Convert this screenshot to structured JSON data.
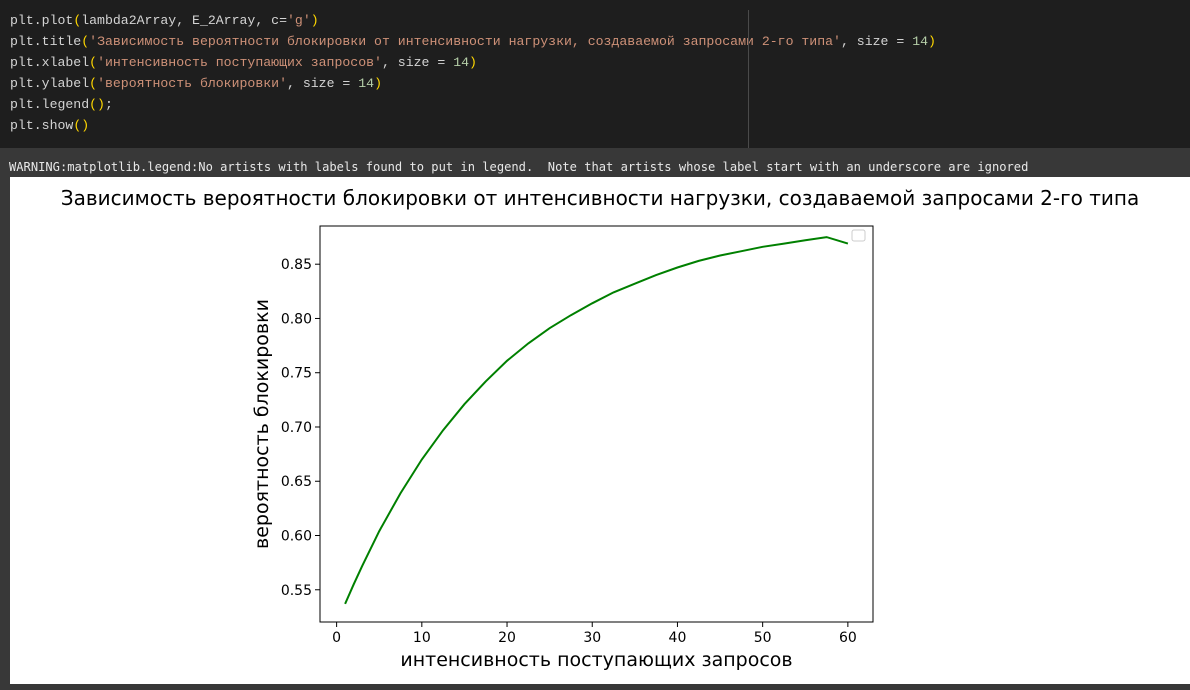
{
  "code_lines": [
    [
      {
        "t": "plt.plot"
      },
      {
        "t": "(",
        "c": "brk"
      },
      {
        "t": "lambda2Array, E_2Array, c="
      },
      {
        "t": "'g'",
        "c": "str"
      },
      {
        "t": ")",
        "c": "brk"
      }
    ],
    [
      {
        "t": "plt.title"
      },
      {
        "t": "(",
        "c": "brk"
      },
      {
        "t": "'Зависимость вероятности блокировки от интенсивности нагрузки, создаваемой запросами 2-го типа'",
        "c": "str"
      },
      {
        "t": ", size = "
      },
      {
        "t": "14",
        "c": "num"
      },
      {
        "t": ")",
        "c": "brk"
      }
    ],
    [
      {
        "t": "plt.xlabel"
      },
      {
        "t": "(",
        "c": "brk"
      },
      {
        "t": "'интенсивность поступающих запросов'",
        "c": "str"
      },
      {
        "t": ", size = "
      },
      {
        "t": "14",
        "c": "num"
      },
      {
        "t": ")",
        "c": "brk"
      }
    ],
    [
      {
        "t": "plt.ylabel"
      },
      {
        "t": "(",
        "c": "brk"
      },
      {
        "t": "'вероятность блокировки'",
        "c": "str"
      },
      {
        "t": ", size = "
      },
      {
        "t": "14",
        "c": "num"
      },
      {
        "t": ")",
        "c": "brk"
      }
    ],
    [
      {
        "t": "plt.legend"
      },
      {
        "t": "()",
        "c": "brk"
      },
      {
        "t": ";"
      }
    ],
    [
      {
        "t": "plt.show"
      },
      {
        "t": "()",
        "c": "brk"
      }
    ]
  ],
  "colors": {
    "code_default": "#d4d4d4",
    "code_string": "#ce9178",
    "code_number": "#b5cea8",
    "code_bracket": "#ffd700",
    "line_series": "#008000"
  },
  "warning_text": "WARNING:matplotlib.legend:No artists with labels found to put in legend.  Note that artists whose label start with an underscore are ignored",
  "chart_data": {
    "type": "line",
    "title": "Зависимость вероятности блокировки от интенсивности нагрузки, создаваемой запросами 2-го типа",
    "xlabel": "интенсивность поступающих запросов",
    "ylabel": "вероятность блокировки",
    "xlim": [
      -1.95,
      62.95
    ],
    "ylim": [
      0.5203,
      0.8852
    ],
    "xticks": [
      0,
      10,
      20,
      30,
      40,
      50,
      60
    ],
    "yticks": [
      0.55,
      0.6,
      0.65,
      0.7,
      0.75,
      0.8,
      0.85
    ],
    "ytick_labels": [
      "0.55",
      "0.60",
      "0.65",
      "0.70",
      "0.75",
      "0.80",
      "0.85"
    ],
    "grid": false,
    "legend": "top-right, empty",
    "series": [
      {
        "color": "#008000",
        "x": [
          1,
          2,
          3,
          5,
          7.5,
          10,
          12.5,
          15,
          17.5,
          20,
          22.5,
          25,
          27.5,
          30,
          32.5,
          35,
          37.5,
          40,
          42.5,
          45,
          47.5,
          50,
          52.5,
          55,
          57.5,
          60
        ],
        "y": [
          0.537,
          0.555,
          0.572,
          0.604,
          0.639,
          0.67,
          0.697,
          0.721,
          0.742,
          0.761,
          0.777,
          0.791,
          0.803,
          0.814,
          0.824,
          0.832,
          0.84,
          0.847,
          0.853,
          0.858,
          0.862,
          0.866,
          0.869,
          0.872,
          0.875,
          0.869
        ]
      }
    ]
  }
}
